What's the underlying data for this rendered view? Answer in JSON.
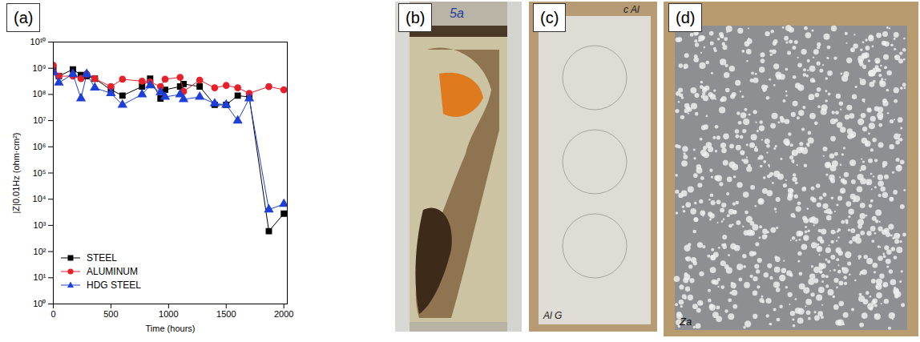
{
  "chart_data": {
    "type": "line",
    "panel_label": "(a)",
    "xlabel": "Time (hours)",
    "ylabel": "|Z|0.01Hz (ohm·cm²)",
    "x": [
      0,
      48,
      170,
      240,
      290,
      360,
      500,
      600,
      770,
      840,
      930,
      970,
      1100,
      1130,
      1270,
      1400,
      1500,
      1600,
      1700,
      1870,
      2000
    ],
    "series": [
      {
        "name": "STEEL",
        "color": "#000000",
        "marker": "square",
        "line_style": "solid",
        "values": [
          1000000000,
          500000000,
          900000000,
          550000000,
          500000000,
          400000000,
          150000000,
          90000000,
          200000000,
          400000000,
          70000000,
          150000000,
          200000000,
          250000000,
          200000000,
          40000000,
          40000000,
          90000000,
          80000000,
          600,
          2800
        ]
      },
      {
        "name": "ALUMINUM",
        "color": "#e8202a",
        "marker": "circle",
        "line_style": "solid",
        "values": [
          1300000000,
          500000000,
          500000000,
          400000000,
          600000000,
          400000000,
          200000000,
          380000000,
          320000000,
          300000000,
          200000000,
          380000000,
          450000000,
          130000000,
          350000000,
          180000000,
          220000000,
          180000000,
          110000000,
          200000000,
          150000000
        ]
      },
      {
        "name": "HDG STEEL",
        "color": "#1e3fd8",
        "marker": "triangle",
        "line_style": "solid",
        "values": [
          700000000,
          280000000,
          600000000,
          70000000,
          600000000,
          180000000,
          110000000,
          40000000,
          100000000,
          220000000,
          120000000,
          80000000,
          100000000,
          65000000,
          80000000,
          45000000,
          40000000,
          10000000,
          70000000,
          4000,
          6500
        ]
      }
    ],
    "xlim": [
      0,
      2030
    ],
    "xticks": [
      0,
      500,
      1000,
      1500,
      2000
    ],
    "ylim": [
      1,
      10000000000
    ],
    "log": "y",
    "yticks": [
      {
        "value": 1,
        "label": "10⁰"
      },
      {
        "value": 10,
        "label": "10¹"
      },
      {
        "value": 100,
        "label": "10²"
      },
      {
        "value": 1000,
        "label": "10³"
      },
      {
        "value": 10000,
        "label": "10⁴"
      },
      {
        "value": 100000,
        "label": "10⁵"
      },
      {
        "value": 1000000,
        "label": "10⁶"
      },
      {
        "value": 10000000,
        "label": "10⁷"
      },
      {
        "value": 100000000,
        "label": "10⁸"
      },
      {
        "value": 1000000000,
        "label": "10⁹"
      },
      {
        "value": 10000000000,
        "label": "10¹⁰"
      }
    ],
    "grid": false,
    "legend": "bottom-left"
  },
  "photos": [
    {
      "label": "(b)",
      "handwriting": [
        "5a"
      ]
    },
    {
      "label": "(c)",
      "handwriting": [
        "c Al",
        "Al G"
      ]
    },
    {
      "label": "(d)",
      "handwriting": [
        "Za"
      ]
    }
  ]
}
